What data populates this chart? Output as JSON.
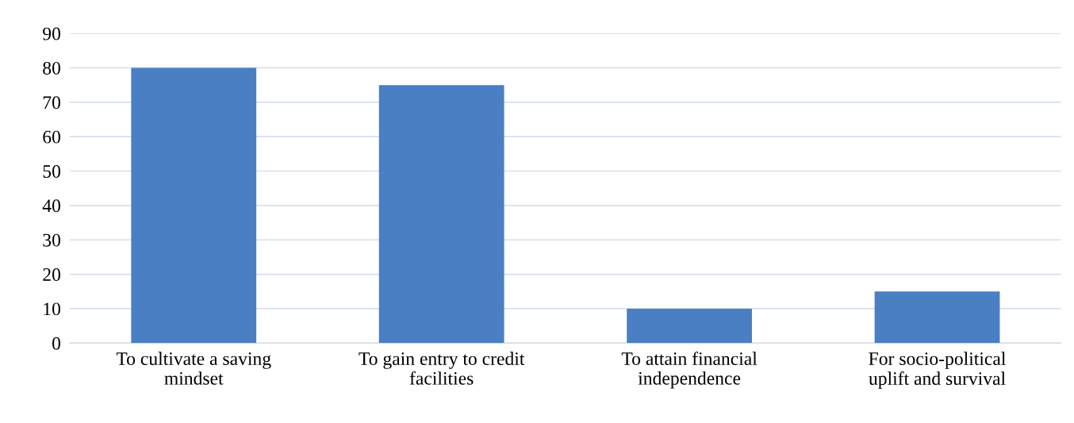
{
  "chart_data": {
    "type": "bar",
    "categories": [
      "To cultivate a saving\nmindset",
      "To gain entry to credit\nfacilities",
      "To attain financial\nindependence",
      "For socio-political\nuplift and survival"
    ],
    "values": [
      80,
      75,
      10,
      15
    ],
    "color": "#4a7fc3",
    "ylim": [
      0,
      90
    ],
    "yticks": [
      0,
      10,
      20,
      30,
      40,
      50,
      60,
      70,
      80,
      90
    ],
    "grid": "y"
  }
}
